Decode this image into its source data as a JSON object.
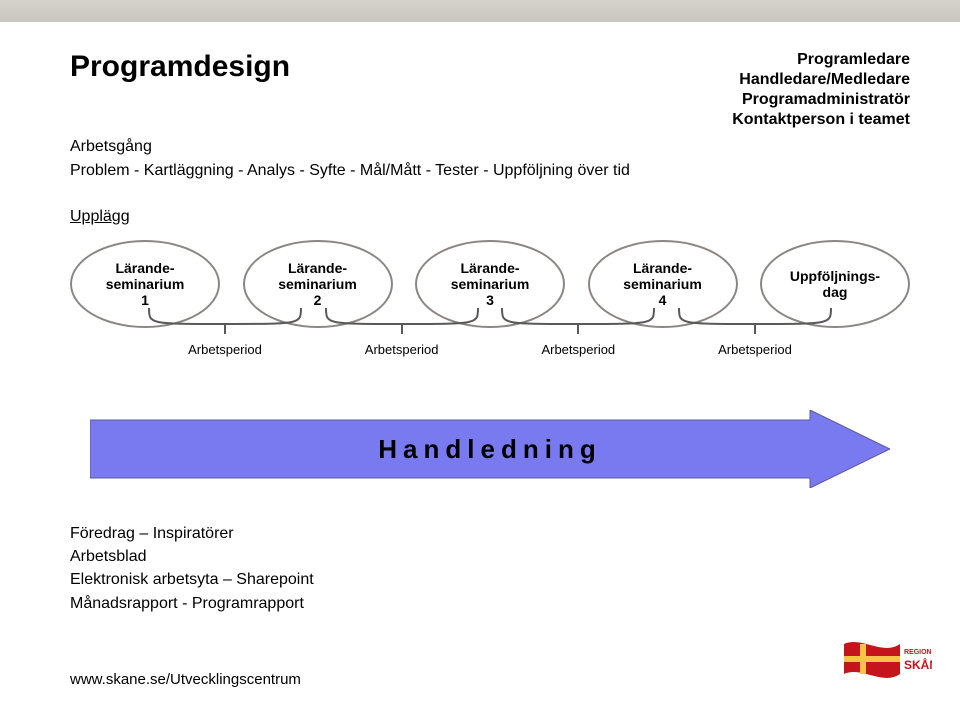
{
  "colors": {
    "accent_bar_top": "#d6d3cd",
    "accent_bar_bottom": "#c9c6c0",
    "ellipse_border": "#8a8683",
    "bracket_stroke": "#595959",
    "arrow_fill": "#7a7af0",
    "arrow_stroke": "#5a5a9a",
    "logo_red": "#c4151c",
    "text": "#000000",
    "background": "#ffffff"
  },
  "title": "Programdesign",
  "roles": [
    "Programledare",
    "Handledare/Medledare",
    "Programadministratör",
    "Kontaktperson i teamet"
  ],
  "subtitle": "Arbetsgång",
  "workflow": "Problem - Kartläggning - Analys - Syfte - Mål/Mått - Tester - Uppföljning över tid",
  "section_label": "Upplägg",
  "ellipses": [
    "Lärande-\nseminarium\n1",
    "Lärande-\nseminarium\n2",
    "Lärande-\nseminarium\n3",
    "Lärande-\nseminarium\n4",
    "Uppföljnings-\ndag"
  ],
  "bracket_label": "Arbetsperiod",
  "bracket_count": 4,
  "arrow_label": "Handledning",
  "footer_lines": [
    "Föredrag – Inspiratörer",
    "Arbetsblad",
    "Elektronisk arbetsyta – Sharepoint",
    "Månadsrapport - Programrapport"
  ],
  "url": "www.skane.se/Utvecklingscentrum",
  "logo_text_top": "REGION",
  "logo_text_bottom": "SKÅNE"
}
